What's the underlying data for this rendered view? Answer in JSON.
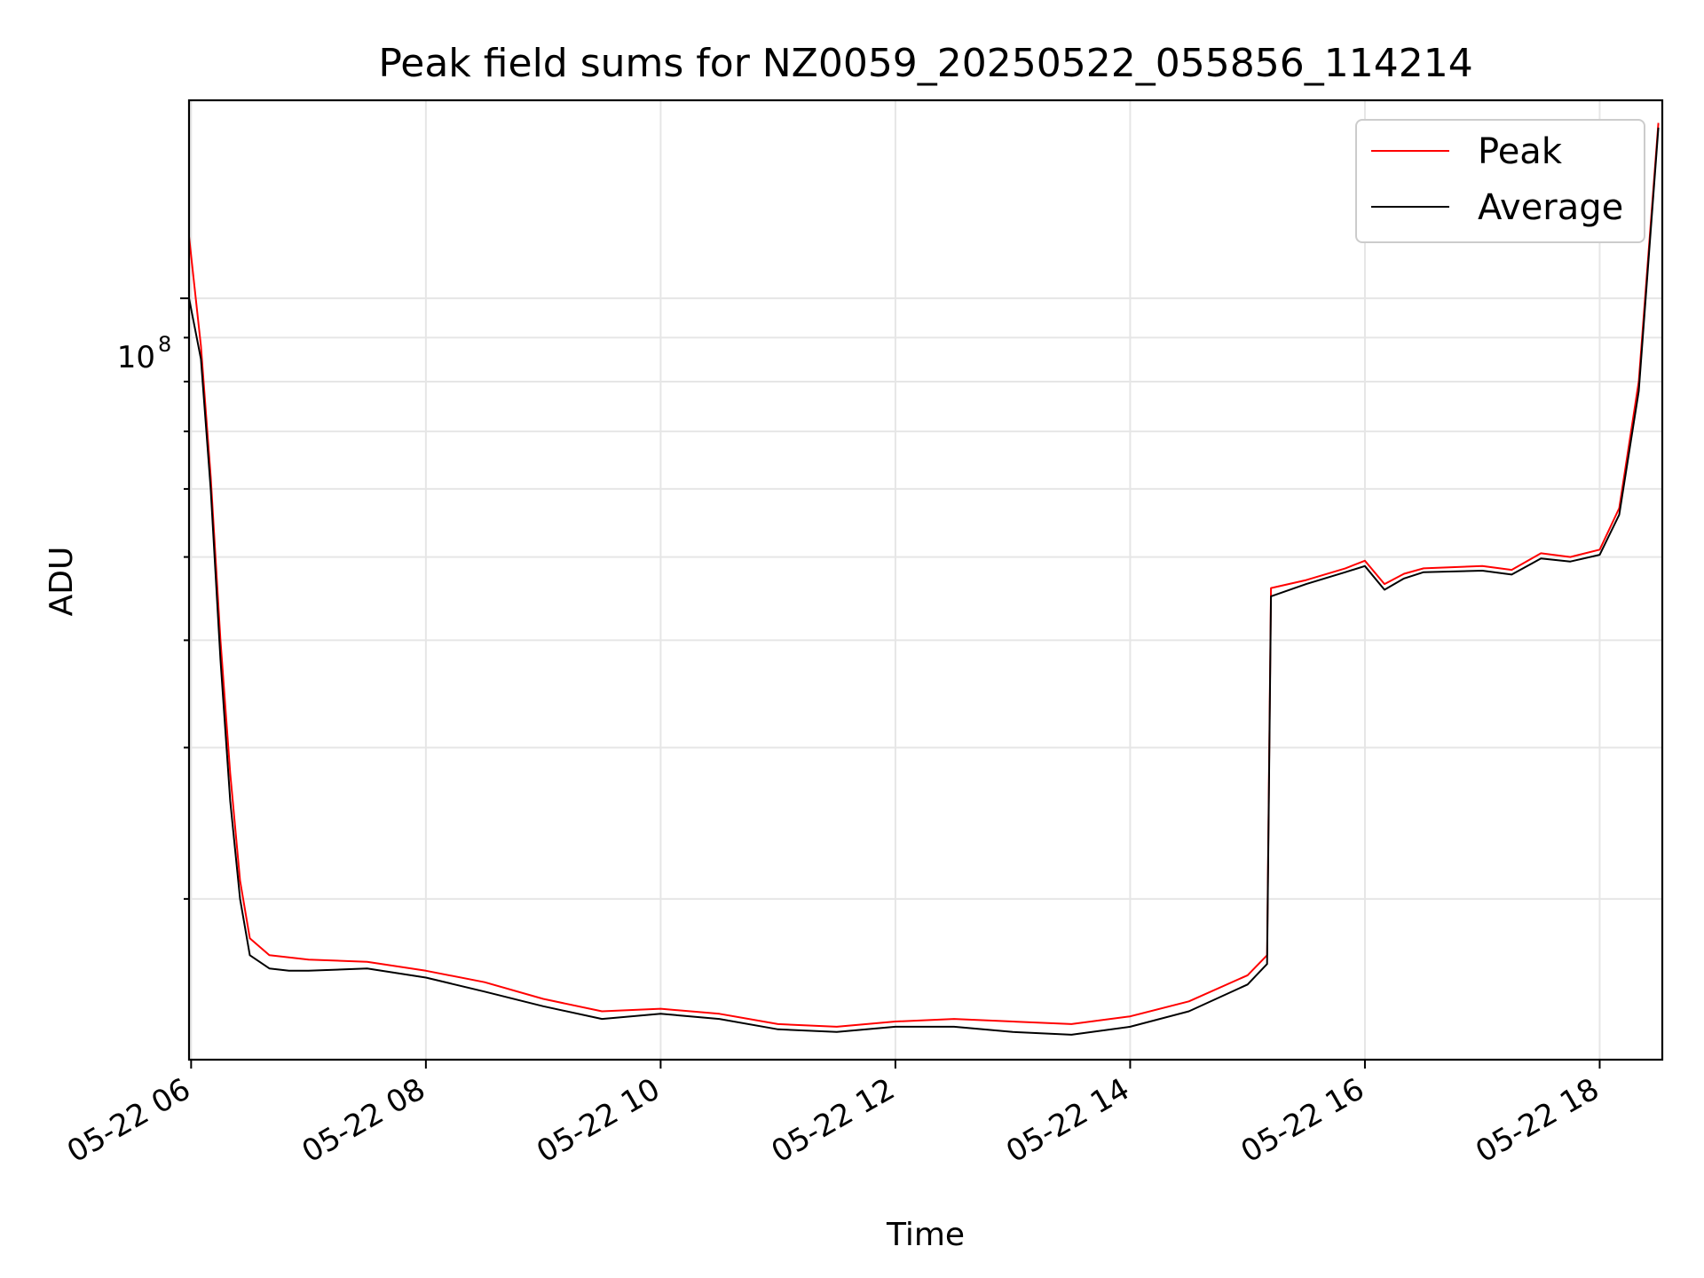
{
  "chart_data": {
    "type": "line",
    "title": "Peak field sums for NZ0059_20250522_055856_114214",
    "xlabel": "Time",
    "ylabel": "ADU",
    "x_ticks": [
      "05-22 06",
      "05-22 08",
      "05-22 10",
      "05-22 12",
      "05-22 14",
      "05-22 16",
      "05-22 18"
    ],
    "y_tick_major": "10^8",
    "y_tick_major_base": "10",
    "y_tick_major_exp": "8",
    "yscale": "log",
    "ylim": [
      13000000,
      170000000
    ],
    "xlim": [
      "2025-05-22 05:58:56",
      "2025-05-22 18:32:00"
    ],
    "grid": true,
    "legend": {
      "position": "top-right",
      "entries": [
        "Peak",
        "Average"
      ]
    },
    "series": [
      {
        "name": "Peak",
        "color": "#ff0000",
        "x": [
          "2025-05-22 05:58:56",
          "2025-05-22 06:05",
          "2025-05-22 06:10",
          "2025-05-22 06:15",
          "2025-05-22 06:20",
          "2025-05-22 06:25",
          "2025-05-22 06:30",
          "2025-05-22 06:40",
          "2025-05-22 06:50",
          "2025-05-22 07:00",
          "2025-05-22 07:30",
          "2025-05-22 08:00",
          "2025-05-22 08:30",
          "2025-05-22 09:00",
          "2025-05-22 09:30",
          "2025-05-22 10:00",
          "2025-05-22 10:30",
          "2025-05-22 11:00",
          "2025-05-22 11:30",
          "2025-05-22 12:00",
          "2025-05-22 12:30",
          "2025-05-22 13:00",
          "2025-05-22 13:30",
          "2025-05-22 14:00",
          "2025-05-22 14:30",
          "2025-05-22 15:00",
          "2025-05-22 15:10",
          "2025-05-22 15:12",
          "2025-05-22 15:30",
          "2025-05-22 15:50",
          "2025-05-22 16:00",
          "2025-05-22 16:10",
          "2025-05-22 16:20",
          "2025-05-22 16:30",
          "2025-05-22 17:00",
          "2025-05-22 17:15",
          "2025-05-22 17:30",
          "2025-05-22 17:45",
          "2025-05-22 18:00",
          "2025-05-22 18:10",
          "2025-05-22 18:20",
          "2025-05-22 18:30"
        ],
        "values": [
          118000000,
          88000000,
          62000000,
          40000000,
          28000000,
          21000000,
          18000000,
          17200000,
          17100000,
          17000000,
          16900000,
          16500000,
          16000000,
          15300000,
          14800000,
          14900000,
          14700000,
          14300000,
          14200000,
          14400000,
          14500000,
          14400000,
          14300000,
          14600000,
          15200000,
          16300000,
          17200000,
          46000000,
          47000000,
          48500000,
          49500000,
          46500000,
          47800000,
          48500000,
          48800000,
          48300000,
          50500000,
          50000000,
          51000000,
          57000000,
          80000000,
          160000000
        ]
      },
      {
        "name": "Average",
        "color": "#000000",
        "x": [
          "2025-05-22 05:58:56",
          "2025-05-22 06:05",
          "2025-05-22 06:10",
          "2025-05-22 06:15",
          "2025-05-22 06:20",
          "2025-05-22 06:25",
          "2025-05-22 06:30",
          "2025-05-22 06:40",
          "2025-05-22 06:50",
          "2025-05-22 07:00",
          "2025-05-22 07:30",
          "2025-05-22 08:00",
          "2025-05-22 08:30",
          "2025-05-22 09:00",
          "2025-05-22 09:30",
          "2025-05-22 10:00",
          "2025-05-22 10:30",
          "2025-05-22 11:00",
          "2025-05-22 11:30",
          "2025-05-22 12:00",
          "2025-05-22 12:30",
          "2025-05-22 13:00",
          "2025-05-22 13:30",
          "2025-05-22 14:00",
          "2025-05-22 14:30",
          "2025-05-22 15:00",
          "2025-05-22 15:10",
          "2025-05-22 15:12",
          "2025-05-22 15:30",
          "2025-05-22 15:50",
          "2025-05-22 16:00",
          "2025-05-22 16:10",
          "2025-05-22 16:20",
          "2025-05-22 16:30",
          "2025-05-22 17:00",
          "2025-05-22 17:15",
          "2025-05-22 17:30",
          "2025-05-22 17:45",
          "2025-05-22 18:00",
          "2025-05-22 18:10",
          "2025-05-22 18:20",
          "2025-05-22 18:30"
        ],
        "values": [
          100000000,
          85000000,
          60000000,
          38000000,
          26000000,
          20000000,
          17200000,
          16600000,
          16500000,
          16500000,
          16600000,
          16200000,
          15600000,
          15000000,
          14500000,
          14700000,
          14500000,
          14100000,
          14000000,
          14200000,
          14200000,
          14000000,
          13900000,
          14200000,
          14800000,
          15900000,
          16800000,
          45000000,
          46500000,
          48000000,
          48800000,
          45800000,
          47200000,
          48000000,
          48200000,
          47700000,
          49800000,
          49400000,
          50300000,
          56000000,
          78000000,
          158000000
        ]
      }
    ]
  }
}
